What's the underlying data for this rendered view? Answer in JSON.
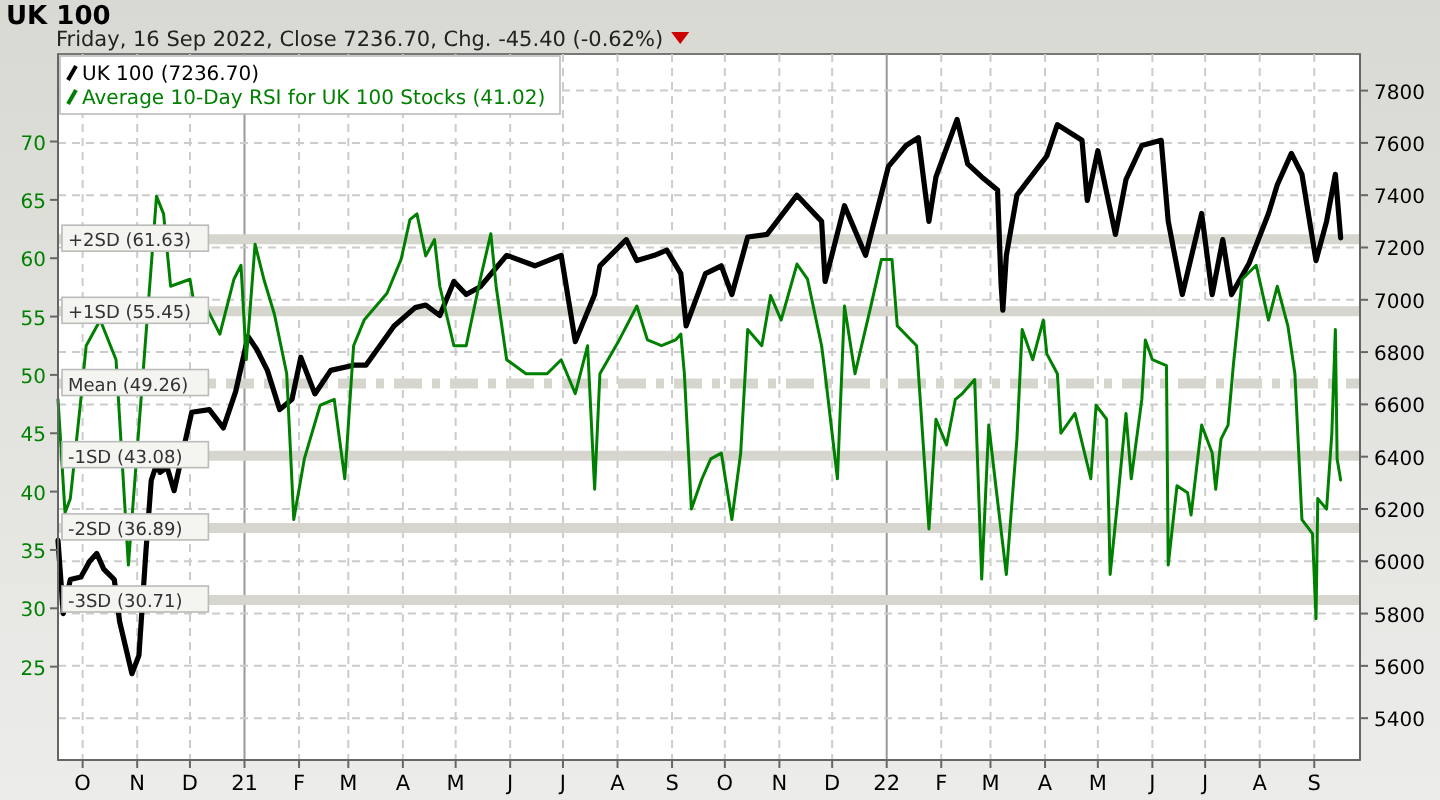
{
  "chart_data": {
    "type": "line",
    "title": "UK 100",
    "subtitle": "Friday, 16 Sep 2022, Close 7236.70, Chg. -45.40 (-0.62%)",
    "xlim": [
      "2020-09-17",
      "2022-09-27"
    ],
    "xticks": [
      {
        "value": "2020-10-01",
        "label": "O"
      },
      {
        "value": "2020-11-01",
        "label": "N"
      },
      {
        "value": "2020-12-01",
        "label": "D"
      },
      {
        "value": "2021-01-01",
        "label": "21"
      },
      {
        "value": "2021-02-01",
        "label": "F"
      },
      {
        "value": "2021-03-01",
        "label": "M"
      },
      {
        "value": "2021-04-01",
        "label": "A"
      },
      {
        "value": "2021-05-01",
        "label": "M"
      },
      {
        "value": "2021-06-01",
        "label": "J"
      },
      {
        "value": "2021-07-01",
        "label": "J"
      },
      {
        "value": "2021-08-01",
        "label": "A"
      },
      {
        "value": "2021-09-01",
        "label": "S"
      },
      {
        "value": "2021-10-01",
        "label": "O"
      },
      {
        "value": "2021-11-01",
        "label": "N"
      },
      {
        "value": "2021-12-01",
        "label": "D"
      },
      {
        "value": "2022-01-01",
        "label": "22"
      },
      {
        "value": "2022-02-01",
        "label": "F"
      },
      {
        "value": "2022-03-01",
        "label": "M"
      },
      {
        "value": "2022-04-01",
        "label": "A"
      },
      {
        "value": "2022-05-01",
        "label": "M"
      },
      {
        "value": "2022-06-01",
        "label": "J"
      },
      {
        "value": "2022-07-01",
        "label": "J"
      },
      {
        "value": "2022-08-01",
        "label": "A"
      },
      {
        "value": "2022-09-01",
        "label": "S"
      }
    ],
    "ylim": [
      17,
      77.5
    ],
    "yticks": [
      25,
      30,
      35,
      40,
      45,
      50,
      55,
      60,
      65,
      70
    ],
    "y2lim": [
      5240,
      7940
    ],
    "y2ticks": [
      5400,
      5600,
      5800,
      6000,
      6200,
      6400,
      6600,
      6800,
      7000,
      7200,
      7400,
      7600,
      7800
    ],
    "grid": true,
    "legend": "top left",
    "ref_lines": [
      {
        "axis": "y",
        "value": 61.63,
        "label": "+2SD (61.63)",
        "color": "#d6d6ce",
        "line_style": "solid"
      },
      {
        "axis": "y",
        "value": 55.45,
        "label": "+1SD (55.45)",
        "color": "#d6d6ce",
        "line_style": "solid"
      },
      {
        "axis": "y",
        "value": 49.26,
        "label": "Mean (49.26)",
        "color": "#d6d6ce",
        "line_style": "dashed"
      },
      {
        "axis": "y",
        "value": 43.08,
        "label": "-1SD (43.08)",
        "color": "#d6d6ce",
        "line_style": "solid"
      },
      {
        "axis": "y",
        "value": 36.89,
        "label": "-2SD (36.89)",
        "color": "#d6d6ce",
        "line_style": "solid"
      },
      {
        "axis": "y",
        "value": 30.71,
        "label": "-3SD (30.71)",
        "color": "#d6d6ce",
        "line_style": "solid"
      }
    ],
    "series": [
      {
        "name": "UK 100 (7236.70)",
        "color": "#000000",
        "axis": "y2",
        "x": [
          "2020-09-17",
          "2020-09-20",
          "2020-09-24",
          "2020-09-30",
          "2020-10-05",
          "2020-10-09",
          "2020-10-13",
          "2020-10-19",
          "2020-10-22",
          "2020-10-29",
          "2020-11-02",
          "2020-11-06",
          "2020-11-09",
          "2020-11-12",
          "2020-11-14",
          "2020-11-18",
          "2020-11-22",
          "2020-12-02",
          "2020-12-12",
          "2020-12-20",
          "2020-12-27",
          "2021-01-03",
          "2021-01-08",
          "2021-01-14",
          "2021-01-21",
          "2021-01-28",
          "2021-02-02",
          "2021-02-10",
          "2021-02-19",
          "2021-03-04",
          "2021-03-11",
          "2021-03-27",
          "2021-04-08",
          "2021-04-14",
          "2021-04-22",
          "2021-04-30",
          "2021-05-07",
          "2021-05-15",
          "2021-05-30",
          "2021-06-15",
          "2021-06-30",
          "2021-07-08",
          "2021-07-19",
          "2021-07-22",
          "2021-08-06",
          "2021-08-12",
          "2021-08-22",
          "2021-08-29",
          "2021-09-06",
          "2021-09-09",
          "2021-09-20",
          "2021-09-29",
          "2021-10-05",
          "2021-10-14",
          "2021-10-25",
          "2021-11-11",
          "2021-11-25",
          "2021-11-27",
          "2021-12-08",
          "2021-12-20",
          "2022-01-02",
          "2022-01-12",
          "2022-01-19",
          "2022-01-25",
          "2022-01-29",
          "2022-02-10",
          "2022-02-16",
          "2022-02-24",
          "2022-03-05",
          "2022-03-07",
          "2022-03-08",
          "2022-03-10",
          "2022-03-16",
          "2022-04-02",
          "2022-04-08",
          "2022-04-22",
          "2022-04-25",
          "2022-05-01",
          "2022-05-11",
          "2022-05-17",
          "2022-05-26",
          "2022-06-06",
          "2022-06-10",
          "2022-06-18",
          "2022-06-29",
          "2022-07-05",
          "2022-07-11",
          "2022-07-16",
          "2022-07-26",
          "2022-08-06",
          "2022-08-11",
          "2022-08-19",
          "2022-08-25",
          "2022-09-02",
          "2022-09-08",
          "2022-09-13",
          "2022-09-16"
        ],
        "values": [
          6080,
          5800,
          5930,
          5940,
          6000,
          6030,
          5970,
          5930,
          5770,
          5570,
          5640,
          6040,
          6310,
          6370,
          6340,
          6360,
          6270,
          6570,
          6580,
          6510,
          6650,
          6860,
          6810,
          6730,
          6580,
          6620,
          6780,
          6640,
          6730,
          6750,
          6750,
          6900,
          6970,
          6980,
          6940,
          7070,
          7020,
          7050,
          7170,
          7130,
          7170,
          6840,
          7020,
          7130,
          7230,
          7150,
          7170,
          7190,
          7100,
          6900,
          7100,
          7130,
          7020,
          7240,
          7250,
          7400,
          7300,
          7070,
          7360,
          7170,
          7510,
          7590,
          7620,
          7300,
          7470,
          7690,
          7520,
          7470,
          7420,
          7060,
          6960,
          7170,
          7400,
          7550,
          7670,
          7610,
          7380,
          7570,
          7250,
          7460,
          7590,
          7610,
          7300,
          7020,
          7330,
          7020,
          7230,
          7020,
          7140,
          7330,
          7440,
          7560,
          7480,
          7150,
          7300,
          7480,
          7237
        ]
      },
      {
        "name": "Average 10-Day RSI for UK 100 Stocks (41.02)",
        "color": "#008000",
        "x": [
          "2020-09-17",
          "2020-09-21",
          "2020-09-24",
          "2020-09-30",
          "2020-10-03",
          "2020-10-11",
          "2020-10-20",
          "2020-10-27",
          "2020-11-12",
          "2020-11-16",
          "2020-11-20",
          "2020-12-01",
          "2020-12-03",
          "2020-12-10",
          "2020-12-18",
          "2020-12-26",
          "2020-12-30",
          "2021-01-02",
          "2021-01-07",
          "2021-01-12",
          "2021-01-18",
          "2021-01-25",
          "2021-01-29",
          "2021-02-04",
          "2021-02-13",
          "2021-02-21",
          "2021-02-27",
          "2021-03-04",
          "2021-03-10",
          "2021-03-23",
          "2021-03-31",
          "2021-04-05",
          "2021-04-09",
          "2021-04-14",
          "2021-04-19",
          "2021-04-22",
          "2021-04-30",
          "2021-05-07",
          "2021-05-15",
          "2021-05-21",
          "2021-05-24",
          "2021-05-30",
          "2021-06-10",
          "2021-06-22",
          "2021-06-30",
          "2021-07-08",
          "2021-07-15",
          "2021-07-19",
          "2021-07-22",
          "2021-08-02",
          "2021-08-12",
          "2021-08-18",
          "2021-08-26",
          "2021-09-03",
          "2021-09-06",
          "2021-09-08",
          "2021-09-12",
          "2021-09-18",
          "2021-09-23",
          "2021-09-29",
          "2021-10-05",
          "2021-10-10",
          "2021-10-14",
          "2021-10-22",
          "2021-10-27",
          "2021-11-02",
          "2021-11-11",
          "2021-11-17",
          "2021-11-25",
          "2021-11-27",
          "2021-12-04",
          "2021-12-08",
          "2021-12-14",
          "2021-12-23",
          "2021-12-29",
          "2022-01-04",
          "2022-01-07",
          "2022-01-18",
          "2022-01-25",
          "2022-01-29",
          "2022-02-04",
          "2022-02-09",
          "2022-02-13",
          "2022-02-20",
          "2022-02-24",
          "2022-02-28",
          "2022-03-04",
          "2022-03-10",
          "2022-03-16",
          "2022-03-19",
          "2022-03-25",
          "2022-03-31",
          "2022-04-02",
          "2022-04-08",
          "2022-04-10",
          "2022-04-18",
          "2022-04-27",
          "2022-04-30",
          "2022-05-06",
          "2022-05-08",
          "2022-05-12",
          "2022-05-17",
          "2022-05-20",
          "2022-05-26",
          "2022-05-28",
          "2022-06-01",
          "2022-06-09",
          "2022-06-10",
          "2022-06-15",
          "2022-06-21",
          "2022-06-23",
          "2022-06-29",
          "2022-07-05",
          "2022-07-07",
          "2022-07-10",
          "2022-07-14",
          "2022-07-17",
          "2022-07-22",
          "2022-07-30",
          "2022-08-06",
          "2022-08-11",
          "2022-08-17",
          "2022-08-21",
          "2022-08-25",
          "2022-08-31",
          "2022-09-02",
          "2022-09-03",
          "2022-09-08",
          "2022-09-11",
          "2022-09-13",
          "2022-09-14",
          "2022-09-16"
        ],
        "values": [
          47.9,
          38.2,
          39.4,
          47.9,
          52.5,
          54.7,
          51.3,
          33.7,
          65.3,
          63.8,
          57.6,
          58.2,
          56.4,
          55.9,
          53.5,
          58.2,
          59.4,
          51.3,
          61.2,
          58.2,
          55.2,
          50.1,
          37.6,
          42.8,
          47.4,
          47.9,
          41.1,
          52.5,
          54.7,
          57.0,
          59.9,
          63.3,
          63.8,
          60.2,
          61.6,
          57.6,
          52.5,
          52.5,
          58.2,
          62.1,
          57.6,
          51.3,
          50.1,
          50.1,
          51.3,
          48.4,
          52.5,
          40.2,
          50.1,
          53.0,
          55.9,
          53.0,
          52.5,
          53.0,
          53.5,
          50.1,
          38.5,
          41.1,
          42.8,
          43.3,
          37.6,
          43.3,
          53.9,
          52.5,
          56.8,
          54.7,
          59.5,
          58.2,
          52.5,
          50.1,
          41.1,
          55.9,
          50.1,
          55.9,
          59.9,
          59.9,
          54.2,
          52.5,
          36.8,
          46.2,
          44.0,
          47.9,
          48.4,
          49.6,
          32.5,
          45.7,
          40.5,
          32.9,
          44.5,
          53.9,
          51.3,
          54.7,
          51.8,
          50.1,
          45.0,
          46.7,
          41.1,
          47.4,
          46.2,
          32.9,
          38.8,
          46.7,
          41.1,
          47.9,
          53.0,
          51.3,
          50.8,
          33.7,
          40.5,
          39.9,
          38.0,
          45.7,
          43.3,
          40.2,
          44.5,
          45.7,
          50.8,
          58.2,
          59.4,
          54.7,
          57.6,
          54.2,
          50.1,
          37.6,
          36.4,
          29.1,
          39.4,
          38.5,
          45.0,
          53.9,
          42.8,
          41.0
        ]
      }
    ]
  }
}
